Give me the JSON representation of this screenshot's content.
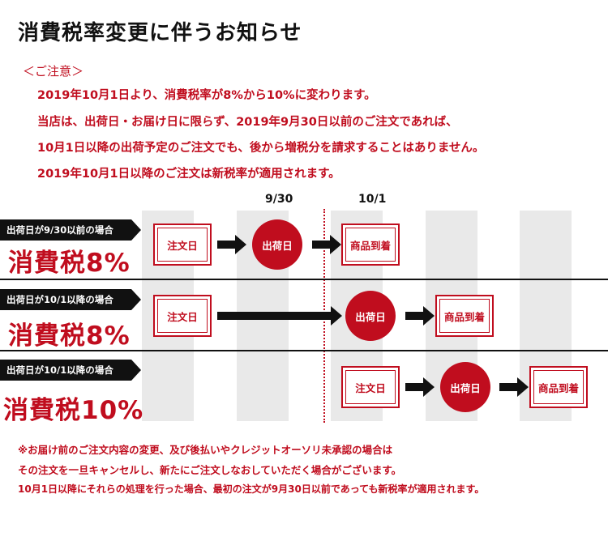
{
  "title": "消費税率変更に伴うお知らせ",
  "notice": {
    "heading": "＜ご注意＞",
    "lines": [
      "2019年10月1日より、消費税率が8%から10%に変わります。",
      "当店は、出荷日・お届け日に限らず、2019年9月30日以前のご注文であれば、",
      "10月1日以降の出荷予定のご注文でも、後から増税分を請求することはありません。",
      "2019年10月1日以降のご注文は新税率が適用されます。"
    ]
  },
  "dates": {
    "sep30": "9/30",
    "oct1": "10/1"
  },
  "rows": [
    {
      "tag": "出荷日が9/30以前の場合",
      "tax": "消費税8%",
      "order": "注文日",
      "ship": "出荷日",
      "arrive": "商品到着"
    },
    {
      "tag": "出荷日が10/1以降の場合",
      "tax": "消費税8%",
      "order": "注文日",
      "ship": "出荷日",
      "arrive": "商品到着"
    },
    {
      "tag": "出荷日が10/1以降の場合",
      "tax": "消費税10%",
      "order": "注文日",
      "ship": "出荷日",
      "arrive": "商品到着"
    }
  ],
  "footnote": [
    "※お届け前のご注文内容の変更、及び後払いやクレジットオーソリ未承認の場合は",
    "その注文を一旦キャンセルし、新たにご注文しなおしていただく場合がございます。",
    "10月1日以降にそれらの処理を行った場合、最初の注文が9月30日以前であっても新税率が適用されます。"
  ],
  "colors": {
    "accent": "#c00d1e",
    "dark": "#111111",
    "stripe": "#e9e9e9"
  }
}
